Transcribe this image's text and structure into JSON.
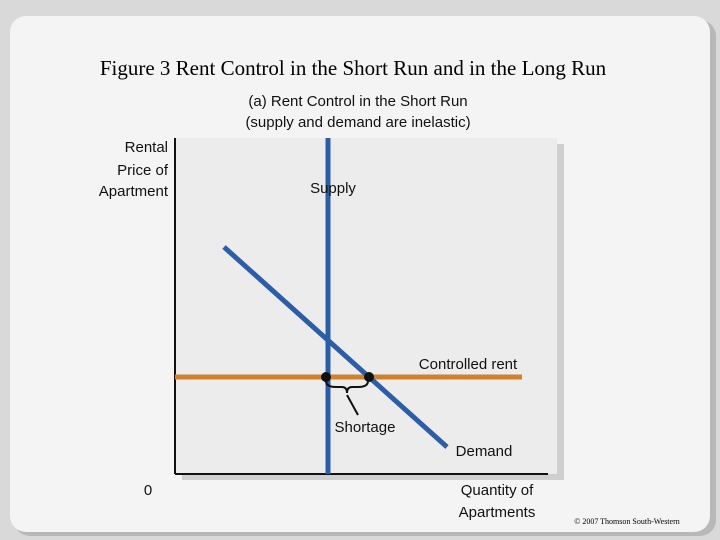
{
  "header": {
    "title": "Figure 3 Rent Control in the Short Run and in the Long Run"
  },
  "panel": {
    "subtitle": [
      "(a) Rent Control in the Short Run",
      "(supply and demand are inelastic)"
    ],
    "y_axis_label": [
      "Rental",
      "Price of",
      "Apartment"
    ],
    "x_axis_label": [
      "Quantity of",
      "Apartments"
    ],
    "origin": "0",
    "curves": {
      "supply": "Supply",
      "demand": "Demand",
      "controlled_rent": "Controlled rent"
    },
    "annotation": "Shortage"
  },
  "footer": {
    "copyright": "© 2007 Thomson South-Western"
  }
}
